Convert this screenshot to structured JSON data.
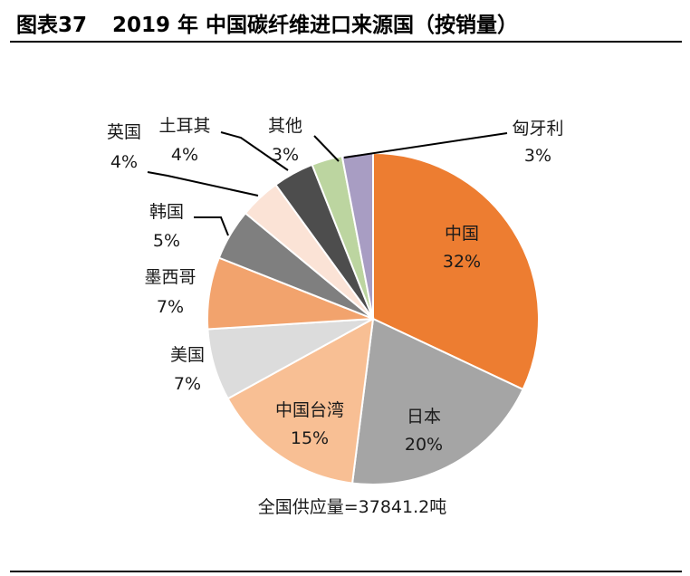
{
  "figure": {
    "number": "图表37",
    "title": "2019 年 中国碳纤维进口来源国（按销量）"
  },
  "chart_data": {
    "type": "pie",
    "title": "",
    "start_angle_deg": 0,
    "direction": "clockwise",
    "slices": [
      {
        "name": "中国",
        "value": 32,
        "label": "32%",
        "color": "#ED7D31"
      },
      {
        "name": "日本",
        "value": 20,
        "label": "20%",
        "color": "#A5A5A5"
      },
      {
        "name": "中国台湾",
        "value": 15,
        "label": "15%",
        "color": "#F8BF94"
      },
      {
        "name": "美国",
        "value": 7,
        "label": "7%",
        "color": "#DCDCDC"
      },
      {
        "name": "墨西哥",
        "value": 7,
        "label": "7%",
        "color": "#F2A36D"
      },
      {
        "name": "韩国",
        "value": 5,
        "label": "5%",
        "color": "#7F7F7F"
      },
      {
        "name": "英国",
        "value": 4,
        "label": "4%",
        "color": "#FBE3D6"
      },
      {
        "name": "土耳其",
        "value": 4,
        "label": "4%",
        "color": "#4D4D4D"
      },
      {
        "name": "其他",
        "value": 3,
        "label": "3%",
        "color": "#BCD5A0"
      },
      {
        "name": "匈牙利",
        "value": 3,
        "label": "3%",
        "color": "#A89DC3"
      }
    ],
    "footnote": "全国供应量=37841.2吨"
  }
}
